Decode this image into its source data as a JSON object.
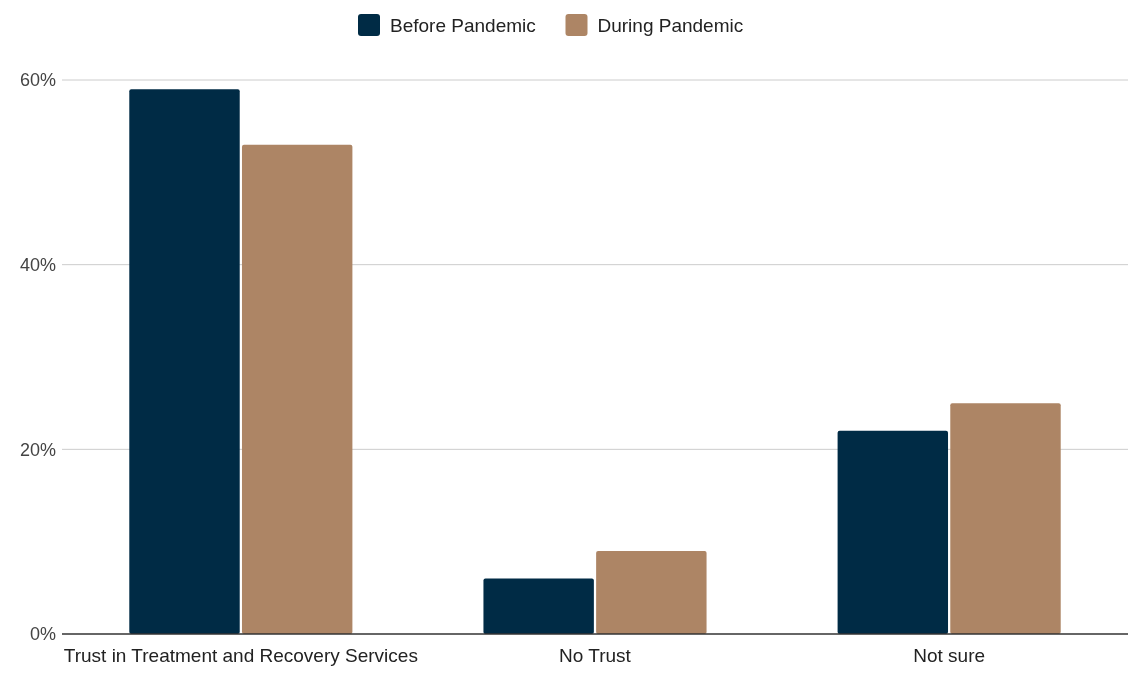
{
  "chart_data": {
    "type": "bar",
    "categories": [
      "Trust in Treatment and Recovery Services",
      "No Trust",
      "Not sure"
    ],
    "series": [
      {
        "name": "Before Pandemic",
        "color": "#002b45",
        "values": [
          59,
          6,
          22
        ]
      },
      {
        "name": "During Pandemic",
        "color": "#ad8565",
        "values": [
          53,
          9,
          25
        ]
      }
    ],
    "ylim": [
      0,
      60
    ],
    "yticks": [
      {
        "value": 0,
        "label": "0%"
      },
      {
        "value": 20,
        "label": "20%"
      },
      {
        "value": 40,
        "label": "40%"
      },
      {
        "value": 60,
        "label": "60%"
      }
    ],
    "grid": "y",
    "legend": "top"
  }
}
